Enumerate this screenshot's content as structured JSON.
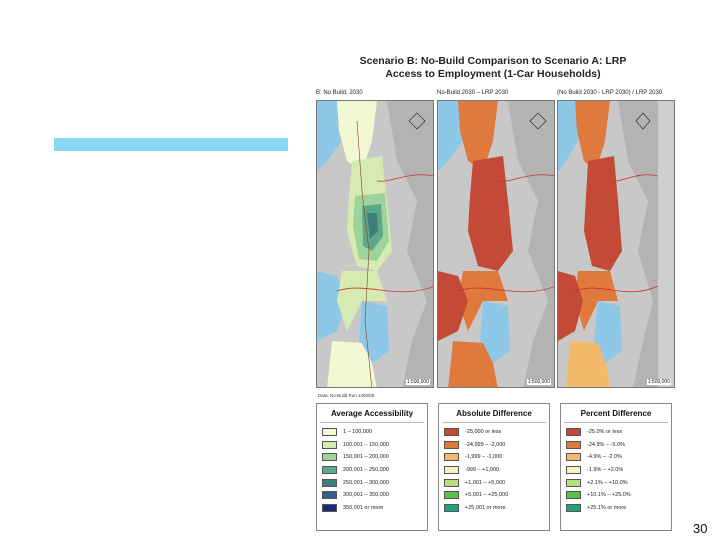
{
  "slide": {
    "accent_color": "#87d8f4",
    "title_line1": "Scenario B: No-Build Comparison to Scenario A: LRP",
    "title_line2": "Access to Employment (1-Car Households)",
    "page_number": "30"
  },
  "panels": [
    {
      "heading": "B: No Build, 2030",
      "scale": "1:500,000",
      "credit": "Data: No-Build Run 1400/05"
    },
    {
      "heading": "No-Build 2030 – LRP 2030",
      "scale": "1:500,000",
      "credit": ""
    },
    {
      "heading": "(No Build 2030 - LRP 2030) / LRP 2030",
      "scale": "1:500,000",
      "credit": ""
    }
  ],
  "legends": [
    {
      "title": "Average Accessibility",
      "items": [
        {
          "label": "1 – 100,000",
          "color": "#f2f8d2"
        },
        {
          "label": "100,001 – 150,000",
          "color": "#d6ebb0"
        },
        {
          "label": "150,001 – 200,000",
          "color": "#9fd39c"
        },
        {
          "label": "200,001 – 250,000",
          "color": "#5ca887"
        },
        {
          "label": "250,001 – 300,000",
          "color": "#3f7d7f"
        },
        {
          "label": "300,001 – 350,000",
          "color": "#33618a"
        },
        {
          "label": "350,001 or more",
          "color": "#1f2a78"
        }
      ]
    },
    {
      "title": "Absolute Difference",
      "items": [
        {
          "label": "-25,000 or less",
          "color": "#c24a36"
        },
        {
          "label": "-24,999 – -2,000",
          "color": "#e07a3c"
        },
        {
          "label": "-1,999 – -1,000",
          "color": "#f4b86a"
        },
        {
          "label": "-999 – +1,000",
          "color": "#f7f4c4"
        },
        {
          "label": "+1,001 – +5,000",
          "color": "#b8e07a"
        },
        {
          "label": "+5,001 – +25,000",
          "color": "#58c24a"
        },
        {
          "label": "+25,001 or more",
          "color": "#1ea37c"
        }
      ]
    },
    {
      "title": "Percent Difference",
      "items": [
        {
          "label": "-25.0% or less",
          "color": "#c24a36"
        },
        {
          "label": "-24.9% – -5.0%",
          "color": "#e07a3c"
        },
        {
          "label": "-4.9% – -2.0%",
          "color": "#f4b86a"
        },
        {
          "label": "-1.9% – +2.0%",
          "color": "#f7f4c4"
        },
        {
          "label": "+2.1% – +10.0%",
          "color": "#b8e07a"
        },
        {
          "label": "+10.1% – +25.0%",
          "color": "#58c24a"
        },
        {
          "label": "+25.1% or more",
          "color": "#1ea37c"
        }
      ]
    }
  ]
}
